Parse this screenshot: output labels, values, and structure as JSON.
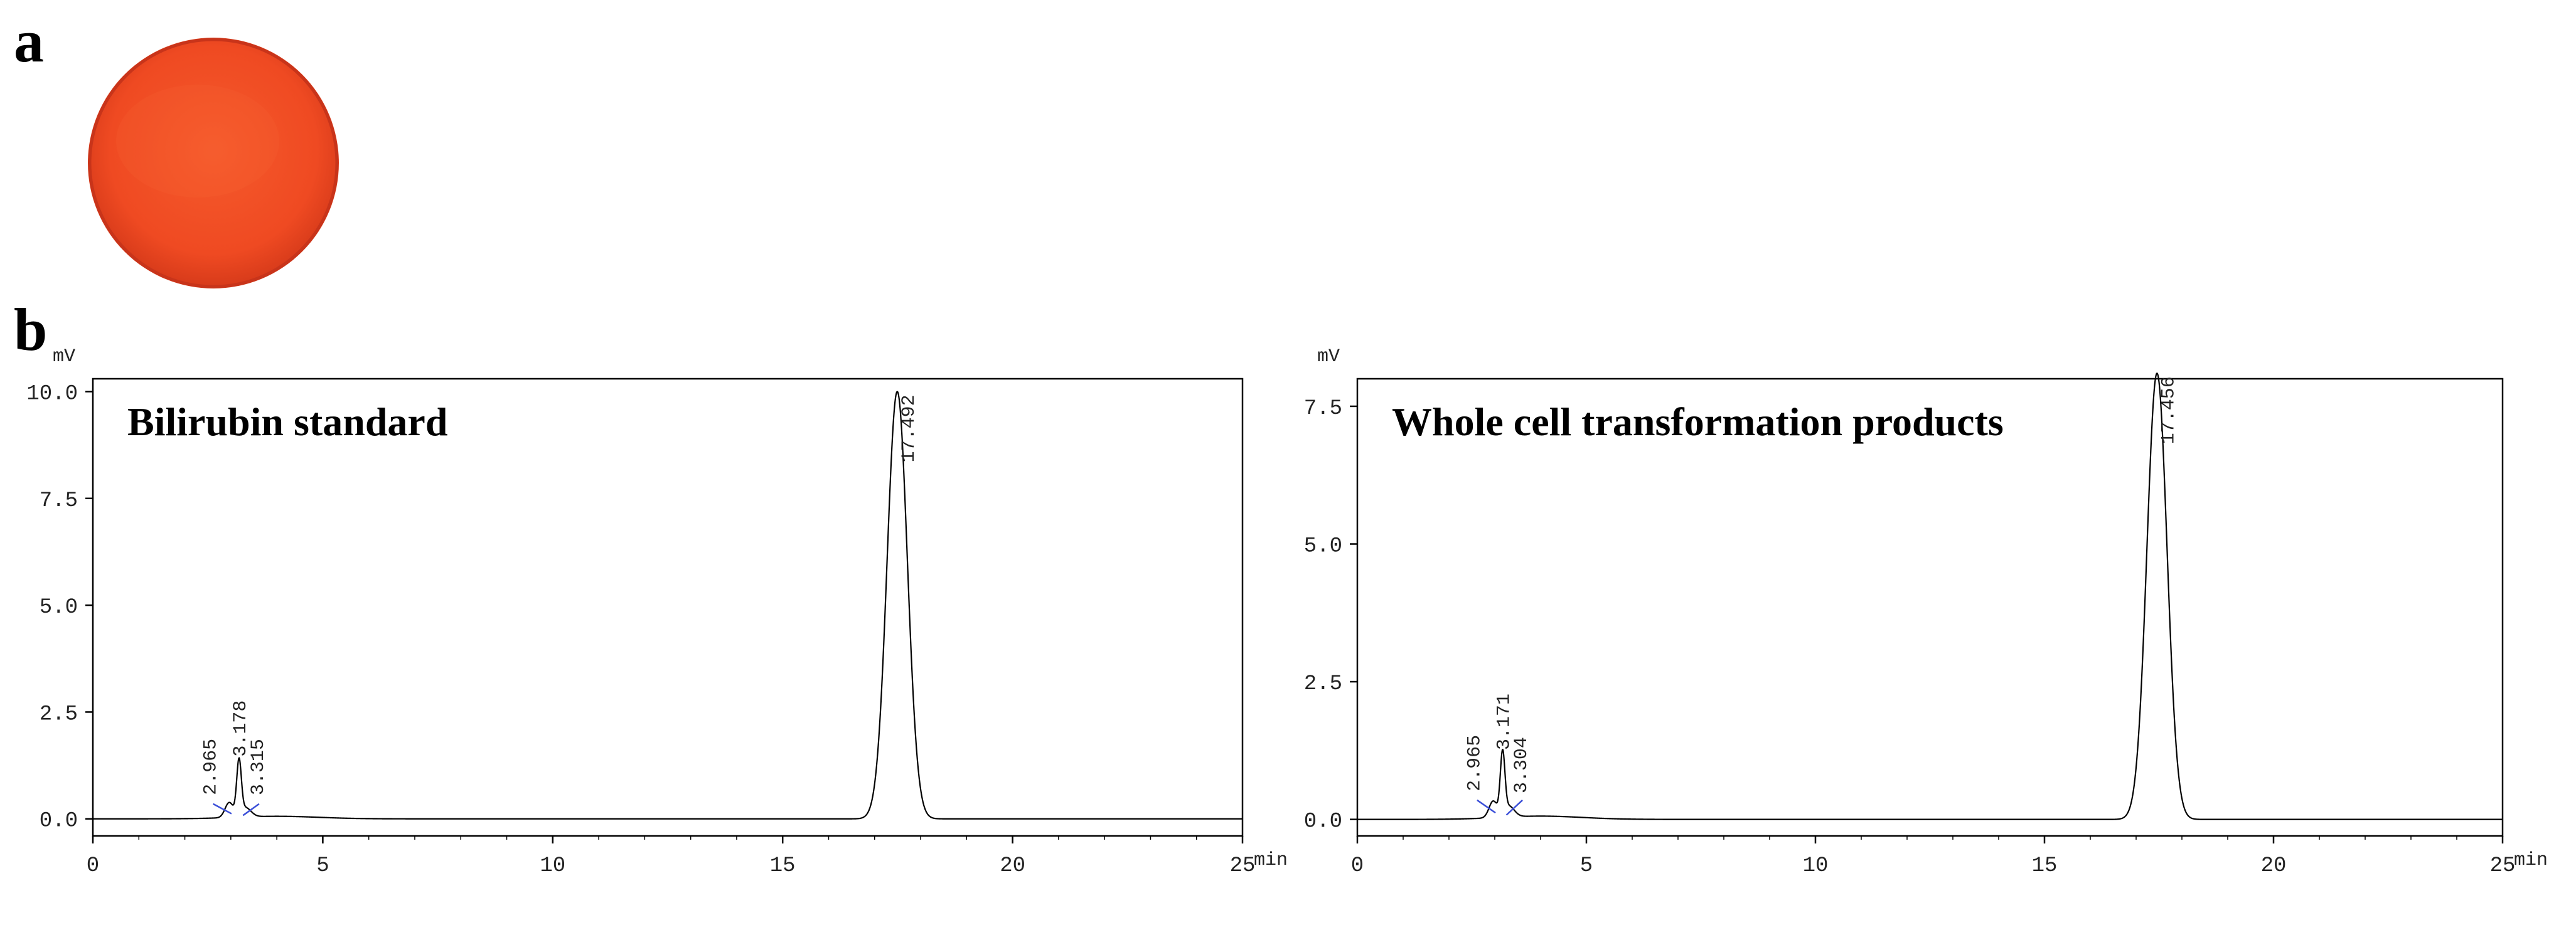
{
  "panels": {
    "a_label": "a",
    "b_label": "b"
  },
  "plate": {
    "color": "#f04a24",
    "edge_color": "#c8341a"
  },
  "colors": {
    "trace": "#000000",
    "baseline_marker": "#3b4fd8",
    "frame": "#000000"
  },
  "chart_data": [
    {
      "type": "line",
      "title": "Bilirubin standard",
      "ylabel": "mV",
      "xlabel": "min",
      "xlim": [
        0,
        25
      ],
      "ylim": [
        -0.4,
        10.3
      ],
      "x_ticks": [
        0,
        5,
        10,
        15,
        20,
        25
      ],
      "x_tick_labels": [
        "0",
        "5",
        "10",
        "15",
        "20",
        "25"
      ],
      "y_ticks": [
        0.0,
        2.5,
        5.0,
        7.5,
        10.0
      ],
      "y_tick_labels": [
        "0.0",
        "2.5",
        "5.0",
        "7.5",
        "10.0"
      ],
      "baseline": 0.0,
      "peaks": [
        {
          "label": "2.965",
          "x": 2.965,
          "height": 0.35,
          "width": 0.09
        },
        {
          "label": "3.178",
          "x": 3.178,
          "height": 1.25,
          "width": 0.05
        },
        {
          "label": "3.315",
          "x": 3.315,
          "height": 0.22,
          "width": 0.12
        },
        {
          "label": "17.492",
          "x": 17.492,
          "height": 10.0,
          "width": 0.22
        }
      ]
    },
    {
      "type": "line",
      "title": "Whole cell transformation products",
      "ylabel": "mV",
      "xlabel": "min",
      "xlim": [
        0,
        25
      ],
      "ylim": [
        -0.3,
        8.0
      ],
      "x_ticks": [
        0,
        5,
        10,
        15,
        20,
        25
      ],
      "x_tick_labels": [
        "0",
        "5",
        "10",
        "15",
        "20",
        "25"
      ],
      "y_ticks": [
        0.0,
        2.5,
        5.0,
        7.5
      ],
      "y_tick_labels": [
        "0.0",
        "2.5",
        "5.0",
        "7.5"
      ],
      "baseline": 0.0,
      "peaks": [
        {
          "label": "2.965",
          "x": 2.965,
          "height": 0.3,
          "width": 0.09
        },
        {
          "label": "3.171",
          "x": 3.171,
          "height": 1.1,
          "width": 0.05
        },
        {
          "label": "3.304",
          "x": 3.304,
          "height": 0.2,
          "width": 0.12
        },
        {
          "label": "17.456",
          "x": 17.456,
          "height": 8.1,
          "width": 0.22
        }
      ]
    }
  ]
}
